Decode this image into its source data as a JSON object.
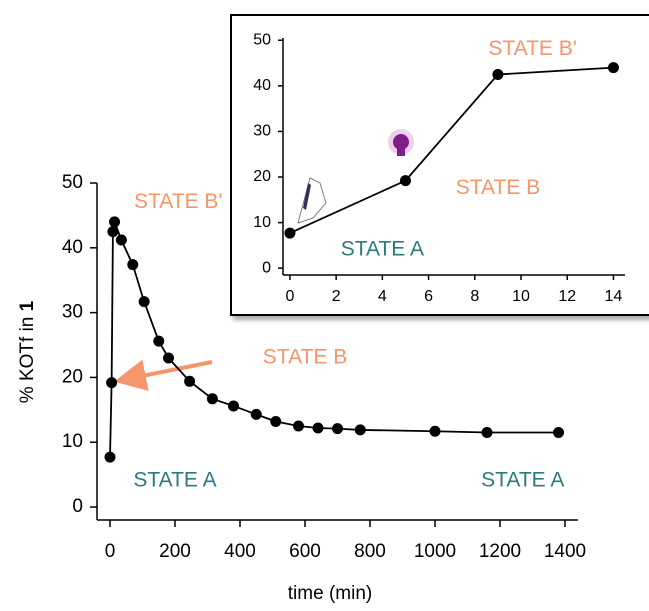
{
  "chart_data": [
    {
      "type": "line",
      "x_label": "time (min)",
      "y_label": "% KOTf in",
      "y_label_compound": "1",
      "x": [
        0,
        5,
        9,
        14,
        35,
        70,
        105,
        150,
        180,
        245,
        315,
        380,
        450,
        510,
        580,
        640,
        700,
        770,
        1000,
        1160,
        1380
      ],
      "series": [
        {
          "values": [
            7.7,
            19.2,
            42.5,
            44,
            41.2,
            37.4,
            31.7,
            25.6,
            23,
            19.4,
            16.7,
            15.6,
            14.3,
            13.2,
            12.5,
            12.2,
            12.1,
            11.9,
            11.7,
            11.5,
            11.5
          ],
          "color": "#000000"
        }
      ],
      "xlim": [
        -40,
        1440
      ],
      "ylim": [
        -2,
        50
      ],
      "xticks": [
        0,
        200,
        400,
        600,
        800,
        1000,
        1200,
        1400
      ],
      "yticks": [
        0,
        10,
        20,
        30,
        40,
        50
      ],
      "annotations": [
        {
          "text": "STATE B'",
          "x": 210,
          "y": 47,
          "color": "#f4956a"
        },
        {
          "text": "STATE B",
          "x": 600,
          "y": 23,
          "color": "#f4956a"
        },
        {
          "text": "STATE A",
          "x": 200,
          "y": 4,
          "color": "#2c7a80"
        },
        {
          "text": "STATE A",
          "x": 1270,
          "y": 4,
          "color": "#2c7a80"
        }
      ]
    },
    {
      "type": "line",
      "x": [
        0,
        5,
        9,
        14
      ],
      "series": [
        {
          "values": [
            7.7,
            19.2,
            42.5,
            44
          ],
          "color": "#000000"
        }
      ],
      "xlim": [
        -0.3,
        14.5
      ],
      "ylim": [
        -1.5,
        50.5
      ],
      "xticks": [
        0,
        2,
        4,
        6,
        8,
        10,
        12,
        14
      ],
      "yticks": [
        0,
        10,
        20,
        30,
        40,
        50
      ],
      "annotations": [
        {
          "text": "STATE B'",
          "x": 10.5,
          "y": 48,
          "color": "#f4956a"
        },
        {
          "text": "STATE B",
          "x": 9,
          "y": 17.5,
          "color": "#f4956a"
        },
        {
          "text": "STATE A",
          "x": 4,
          "y": 4,
          "color": "#2c7a80"
        }
      ]
    }
  ]
}
